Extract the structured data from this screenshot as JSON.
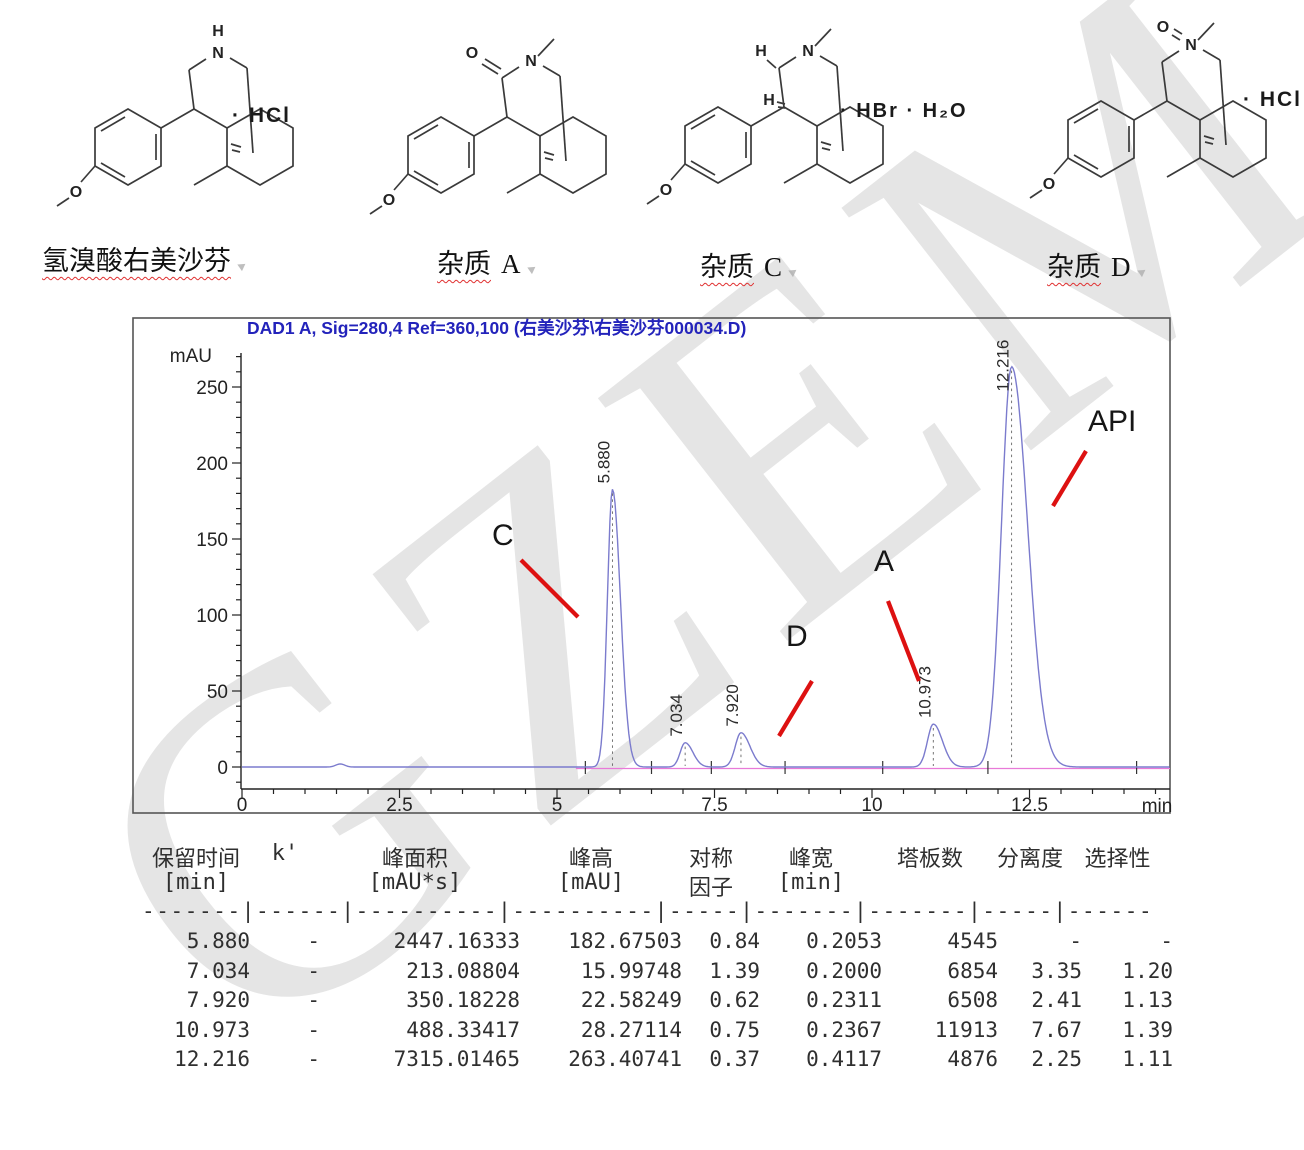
{
  "watermark": "GZEM",
  "compounds": [
    {
      "label_cjk": "氢溴酸右美沙芬",
      "label_letter": "",
      "adduct": "· HCl",
      "features": {
        "amine": "NH",
        "ketone": false,
        "stereoH": false
      }
    },
    {
      "label_cjk": "杂质",
      "label_letter": "A",
      "adduct": "",
      "features": {
        "amine": "NMe",
        "ketone": true,
        "stereoH": false
      }
    },
    {
      "label_cjk": "杂质",
      "label_letter": "C",
      "adduct": "· HBr · H₂O",
      "features": {
        "amine": "NMe",
        "ketone": false,
        "stereoH": true
      }
    },
    {
      "label_cjk": "杂质",
      "label_letter": "D",
      "adduct": "· HCl",
      "features": {
        "amine": "NMeO",
        "ketone": false,
        "stereoH": false
      }
    }
  ],
  "atoms": {
    "N": "N",
    "H": "H",
    "O": "O"
  },
  "chromatogram": {
    "title": "DAD1 A, Sig=280,4 Ref=360,100 (右美沙芬\\右美沙芬000034.D)",
    "y_unit": "mAU",
    "x_unit": "min"
  },
  "chart_data": {
    "type": "line",
    "title": "DAD1 A, Sig=280,4 Ref=360,100 (右美沙芬\\右美沙芬000034.D)",
    "xlabel": "min",
    "ylabel": "mAU",
    "xlim": [
      0,
      14.72
    ],
    "ylim": [
      -12,
      272
    ],
    "x_ticks": [
      0,
      2.5,
      5,
      7.5,
      10,
      12.5
    ],
    "x_minor_step": 0.5,
    "y_ticks": [
      0,
      50,
      100,
      150,
      200,
      250
    ],
    "y_minor_step": 10,
    "grid": false,
    "series": [
      {
        "name": "DAD1 A",
        "peaks": [
          {
            "rt": 5.88,
            "height": 182.67503,
            "half_width": 0.2053,
            "label": "5.880"
          },
          {
            "rt": 7.034,
            "height": 15.99748,
            "half_width": 0.2,
            "label": "7.034"
          },
          {
            "rt": 7.92,
            "height": 22.58249,
            "half_width": 0.2311,
            "label": "7.920"
          },
          {
            "rt": 10.973,
            "height": 28.27114,
            "half_width": 0.2367,
            "label": "10.973"
          },
          {
            "rt": 12.216,
            "height": 263.40741,
            "half_width": 0.4117,
            "label": "12.216"
          }
        ],
        "minor_blip": {
          "rt": 1.56,
          "height": 2.0
        }
      }
    ],
    "integration_marks_min": [
      5.45,
      6.5,
      7.45,
      8.62,
      10.17,
      11.84,
      14.2
    ],
    "assignments": [
      {
        "label": "C",
        "rt": 5.88
      },
      {
        "label": "D",
        "rt": 7.92
      },
      {
        "label": "A",
        "rt": 10.973
      },
      {
        "label": "API",
        "rt": 12.216
      }
    ]
  },
  "table": {
    "headers": [
      {
        "h1": "保留时间",
        "h2": "[min]"
      },
      {
        "h1": "k'",
        "h2": ""
      },
      {
        "h1": "峰面积",
        "h2": "[mAU*s]"
      },
      {
        "h1": "峰高",
        "h2": "[mAU]"
      },
      {
        "h1": "对称",
        "h2": "因子"
      },
      {
        "h1": "峰宽",
        "h2": "[min]"
      },
      {
        "h1": "塔板数",
        "h2": ""
      },
      {
        "h1": "分离度",
        "h2": ""
      },
      {
        "h1": "选择性",
        "h2": ""
      }
    ],
    "separator": "-------|------|----------|----------|-----|-------|-------|-----|------",
    "rows": [
      [
        "5.880",
        "-",
        "2447.16333",
        "182.67503",
        "0.84",
        "0.2053",
        "4545",
        "-",
        "-"
      ],
      [
        "7.034",
        "-",
        "213.08804",
        "15.99748",
        "1.39",
        "0.2000",
        "6854",
        "3.35",
        "1.20"
      ],
      [
        "7.920",
        "-",
        "350.18228",
        "22.58249",
        "0.62",
        "0.2311",
        "6508",
        "2.41",
        "1.13"
      ],
      [
        "10.973",
        "-",
        "488.33417",
        "28.27114",
        "0.75",
        "0.2367",
        "11913",
        "7.67",
        "1.39"
      ],
      [
        "12.216",
        "-",
        "7315.01465",
        "263.40741",
        "0.37",
        "0.4117",
        "4876",
        "2.25",
        "1.11"
      ]
    ]
  },
  "colors": {
    "trace": "#7b7bcd",
    "pink_baseline": "#e87ad8",
    "annotation_red": "#dd1111",
    "title_blue": "#2323bb",
    "watermark_gray": "#dedede",
    "axis_black": "#222222"
  }
}
